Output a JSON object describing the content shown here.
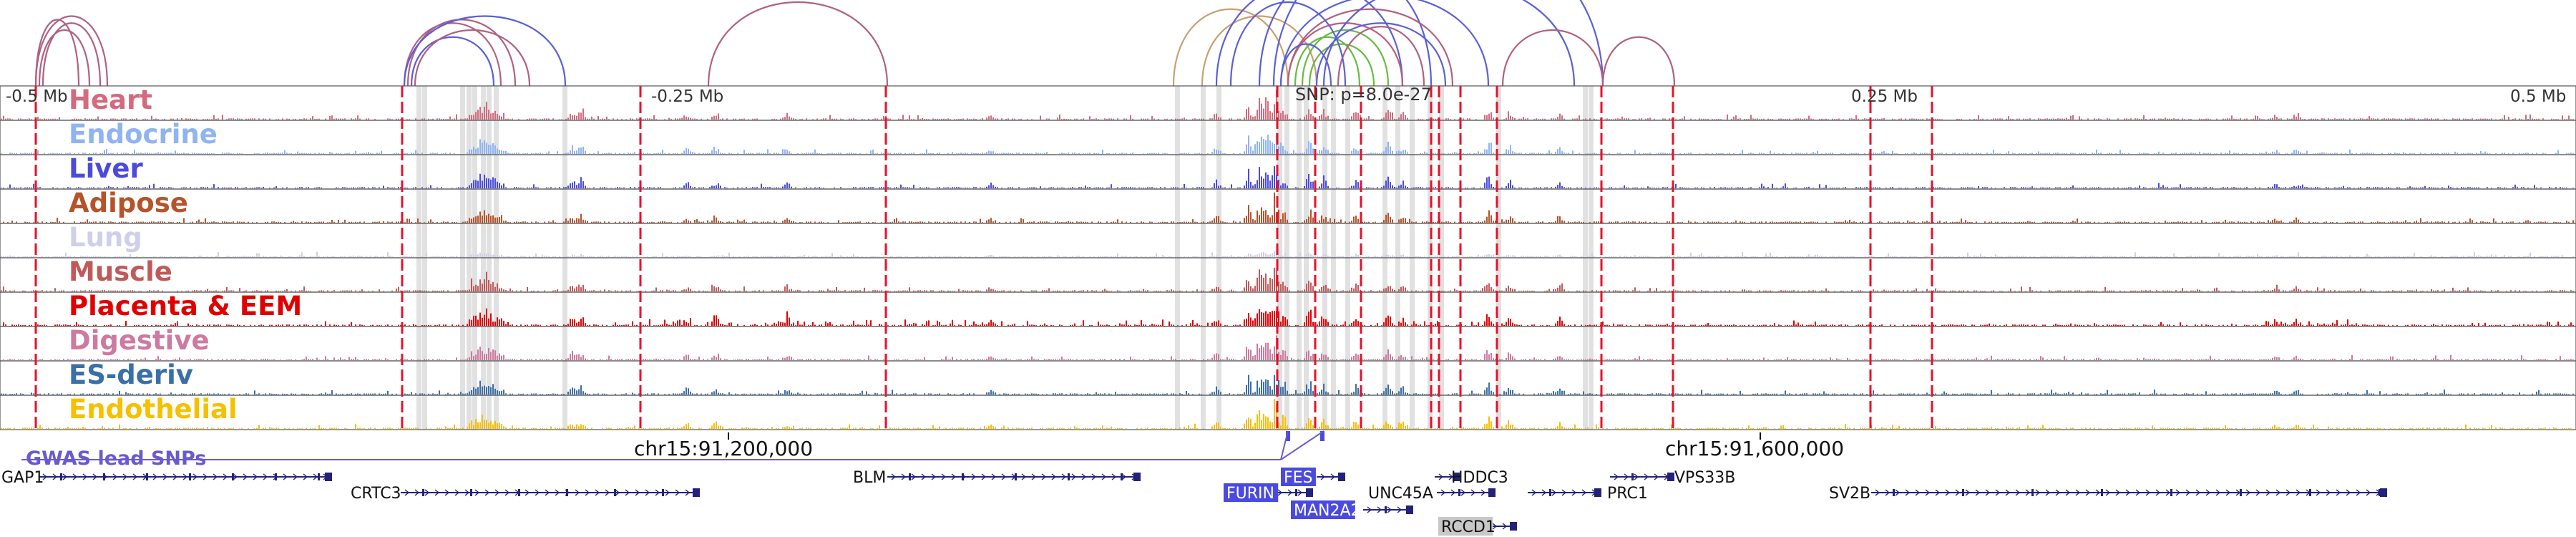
{
  "colors": {
    "arc_blue": "#5a5fd6",
    "arc_mauve": "#b06080",
    "arc_tan": "#c8a070",
    "arc_green": "#66bb44",
    "marker_red": "#e8102a",
    "snp_band": "#c8c8c8",
    "gwas": "#6a5acd",
    "gene": "#22227a",
    "highlight_gene": "#4a4adf",
    "grey_gene": "#c8c8c8"
  },
  "scale": {
    "labels": [
      "-0.5 Mb",
      "-0.25 Mb",
      "0.25 Mb",
      "0.5 Mb"
    ],
    "snp_label": "SNP: p=8.0e-27"
  },
  "tracks": [
    {
      "name": "Heart",
      "color": "#d46a7e"
    },
    {
      "name": "Endocrine",
      "color": "#8fb4ef"
    },
    {
      "name": "Liver",
      "color": "#4a4adf"
    },
    {
      "name": "Adipose",
      "color": "#b5532a"
    },
    {
      "name": "Lung",
      "color": "#cfcfea"
    },
    {
      "name": "Muscle",
      "color": "#c05a5a"
    },
    {
      "name": "Placenta & EEM",
      "color": "#e00000"
    },
    {
      "name": "Digestive",
      "color": "#cc7aa0"
    },
    {
      "name": "ES-deriv",
      "color": "#3a6fa8"
    },
    {
      "name": "Endothelial",
      "color": "#f5c000"
    }
  ],
  "gwas_label": "GWAS lead SNPs",
  "coordinates": [
    "chr15:91,200,000",
    "chr15:91,600,000"
  ],
  "genes": [
    {
      "name": "GAP1",
      "style": "plain"
    },
    {
      "name": "CRTC3",
      "style": "plain"
    },
    {
      "name": "BLM",
      "style": "plain"
    },
    {
      "name": "FES",
      "style": "highlight"
    },
    {
      "name": "FURIN",
      "style": "highlight"
    },
    {
      "name": "MAN2A2",
      "style": "highlight"
    },
    {
      "name": "UNC45A",
      "style": "plain"
    },
    {
      "name": "HDDC3",
      "style": "plain"
    },
    {
      "name": "RCCD1",
      "style": "grey"
    },
    {
      "name": "PRC1",
      "style": "plain"
    },
    {
      "name": "VPS33B",
      "style": "plain"
    },
    {
      "name": "SV2B",
      "style": "plain"
    }
  ]
}
